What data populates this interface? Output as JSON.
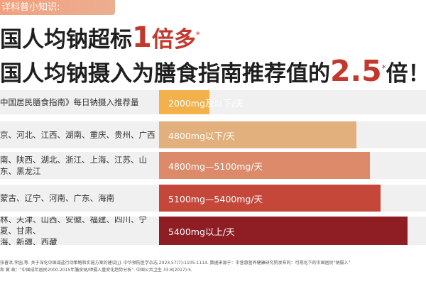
{
  "tag": "详科普小知识:",
  "headline1": {
    "pre": "国人均钠超标",
    "num": "1",
    "post": "倍多",
    "star": "*"
  },
  "headline2": {
    "pre": "国人均钠摄入为膳食指南推荐值的",
    "num": "2.5",
    "star": "*",
    "post": "倍！"
  },
  "rows": [
    {
      "region": "中国居民膳食指南》每日钠摄入推荐量",
      "label": "2000mg及以下/天",
      "value": 0.19,
      "color": "#f2b14a"
    },
    {
      "region": "京、河北、江西、湖南、重庆、贵州、广西",
      "label": "4800mg以下/天",
      "value": 0.74,
      "color": "#e2b07c"
    },
    {
      "region": "南、陕西、湖北、浙江、上海、江苏、山东、黑龙江",
      "label": "4800mg—5100mg/天",
      "value": 0.79,
      "color": "#dc8a6a"
    },
    {
      "region": "蒙古、辽宁、河南、广东、海南",
      "label": "5100mg—5400mg/天",
      "value": 0.83,
      "color": "#c4473a"
    },
    {
      "region": "林、天津、山西、安徽、福建、四川、宁夏、甘肃、\n海、新疆、西藏",
      "label": "5400mg以上/天",
      "value": 0.93,
      "color": "#8e1e24"
    }
  ],
  "footnotes": [
    "张普洪,李园,等. 关于深化中国减盐行动策略和实施方案的建议[J]. 中华预防医学杂志,2023,57(7):1105-1114. 数据来源于：中营惠营养健康研究院发布的：可视化下的中国居民\"钠摄入\"",
    "和 黄 政：\"中国成年居民2000-2015年膳食钠/钾摄入量变化趋势分析\". 中国公共卫生 33.8(2017):5."
  ]
}
